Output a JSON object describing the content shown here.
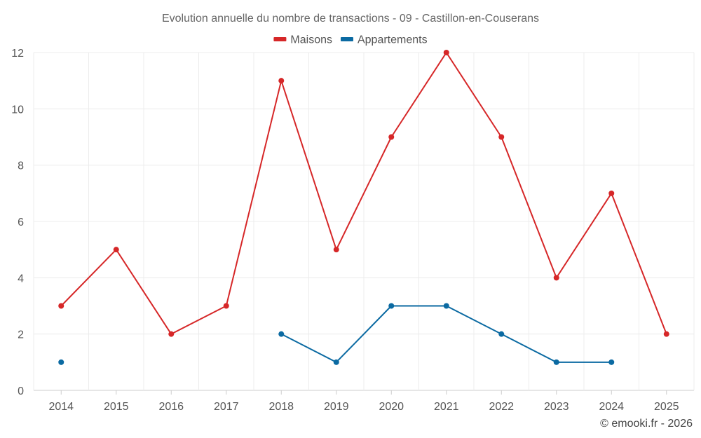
{
  "chart_data": {
    "type": "line",
    "title": "Evolution annuelle du nombre de transactions - 09 - Castillon-en-Couserans",
    "categories": [
      "2014",
      "2015",
      "2016",
      "2017",
      "2018",
      "2019",
      "2020",
      "2021",
      "2022",
      "2023",
      "2024",
      "2025"
    ],
    "series": [
      {
        "name": "Maisons",
        "color": "#d62728",
        "values": [
          3,
          5,
          2,
          3,
          11,
          5,
          9,
          12,
          9,
          4,
          7,
          2
        ]
      },
      {
        "name": "Appartements",
        "color": "#0b6aa2",
        "values": [
          1,
          null,
          null,
          null,
          2,
          1,
          3,
          3,
          2,
          1,
          1,
          null
        ]
      }
    ],
    "ylim": [
      0,
      12
    ],
    "yticks": [
      0,
      2,
      4,
      6,
      8,
      10,
      12
    ],
    "xlabel": "",
    "ylabel": "",
    "grid": true,
    "legend": "top-center"
  },
  "credit": "© emooki.fr - 2026"
}
